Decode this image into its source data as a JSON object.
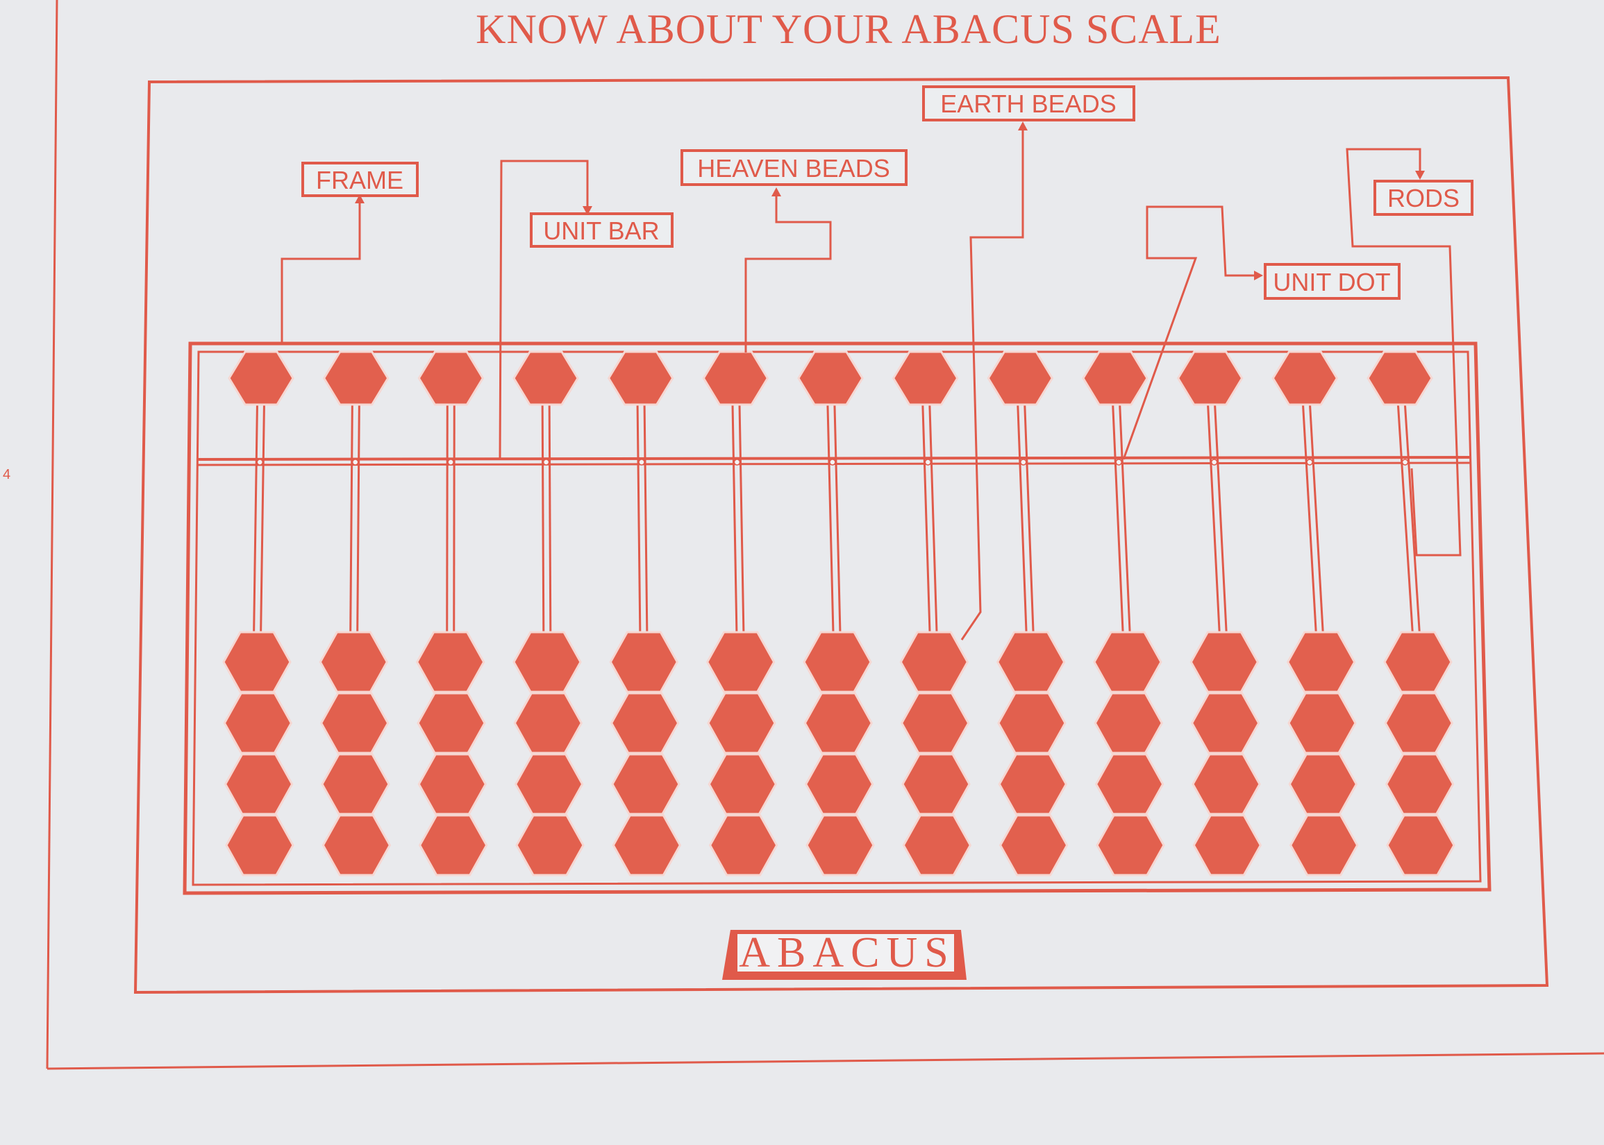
{
  "page": {
    "title": "KNOW ABOUT YOUR ABACUS SCALE",
    "page_number": "4",
    "brand_label": "ABACUS"
  },
  "labels": {
    "frame": "FRAME",
    "unit_bar": "UNIT BAR",
    "heaven_beads": "HEAVEN BEADS",
    "earth_beads": "EARTH BEADS",
    "unit_dot": "UNIT DOT",
    "rods": "RODS"
  },
  "abacus": {
    "rod_count": 13,
    "heaven_beads_per_rod": 1,
    "earth_beads_per_rod": 4
  },
  "colors": {
    "ink": "#e05a4a",
    "bead": "#e2604e",
    "background": "#e9eaed"
  }
}
